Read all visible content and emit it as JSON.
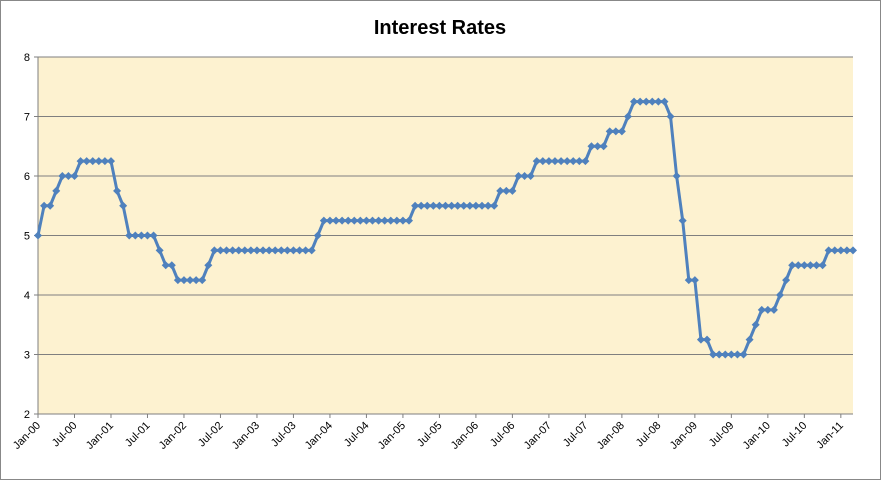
{
  "chart_data": {
    "type": "line",
    "title": "Interest Rates",
    "categories": [
      "Jan-00",
      null,
      null,
      null,
      null,
      null,
      "Jul-00",
      null,
      null,
      null,
      null,
      null,
      "Jan-01",
      null,
      null,
      null,
      null,
      null,
      "Jul-01",
      null,
      null,
      null,
      null,
      null,
      "Jan-02",
      null,
      null,
      null,
      null,
      null,
      "Jul-02",
      null,
      null,
      null,
      null,
      null,
      "Jan-03",
      null,
      null,
      null,
      null,
      null,
      "Jul-03",
      null,
      null,
      null,
      null,
      null,
      "Jan-04",
      null,
      null,
      null,
      null,
      null,
      "Jul-04",
      null,
      null,
      null,
      null,
      null,
      "Jan-05",
      null,
      null,
      null,
      null,
      null,
      "Jul-05",
      null,
      null,
      null,
      null,
      null,
      "Jan-06",
      null,
      null,
      null,
      null,
      null,
      "Jul-06",
      null,
      null,
      null,
      null,
      null,
      "Jan-07",
      null,
      null,
      null,
      null,
      null,
      "Jul-07",
      null,
      null,
      null,
      null,
      null,
      "Jan-08",
      null,
      null,
      null,
      null,
      null,
      "Jul-08",
      null,
      null,
      null,
      null,
      null,
      "Jan-09",
      null,
      null,
      null,
      null,
      null,
      "Jul-09",
      null,
      null,
      null,
      null,
      null,
      "Jan-10",
      null,
      null,
      null,
      null,
      null,
      "Jul-10",
      null,
      null,
      null,
      null,
      null,
      "Jan-11",
      null,
      null
    ],
    "values": [
      5,
      5.5,
      5.5,
      5.75,
      6,
      6,
      6,
      6.25,
      6.25,
      6.25,
      6.25,
      6.25,
      6.25,
      5.75,
      5.5,
      5,
      5,
      5,
      5,
      5,
      4.75,
      4.5,
      4.5,
      4.25,
      4.25,
      4.25,
      4.25,
      4.25,
      4.5,
      4.75,
      4.75,
      4.75,
      4.75,
      4.75,
      4.75,
      4.75,
      4.75,
      4.75,
      4.75,
      4.75,
      4.75,
      4.75,
      4.75,
      4.75,
      4.75,
      4.75,
      5,
      5.25,
      5.25,
      5.25,
      5.25,
      5.25,
      5.25,
      5.25,
      5.25,
      5.25,
      5.25,
      5.25,
      5.25,
      5.25,
      5.25,
      5.25,
      5.5,
      5.5,
      5.5,
      5.5,
      5.5,
      5.5,
      5.5,
      5.5,
      5.5,
      5.5,
      5.5,
      5.5,
      5.5,
      5.5,
      5.75,
      5.75,
      5.75,
      6,
      6,
      6,
      6.25,
      6.25,
      6.25,
      6.25,
      6.25,
      6.25,
      6.25,
      6.25,
      6.25,
      6.5,
      6.5,
      6.5,
      6.75,
      6.75,
      6.75,
      7,
      7.25,
      7.25,
      7.25,
      7.25,
      7.25,
      7.25,
      7,
      6,
      5.25,
      4.25,
      4.25,
      3.25,
      3.25,
      3,
      3,
      3,
      3,
      3,
      3,
      3.25,
      3.5,
      3.75,
      3.75,
      3.75,
      4,
      4.25,
      4.5,
      4.5,
      4.5,
      4.5,
      4.5,
      4.5,
      4.75,
      4.75,
      4.75,
      4.75,
      4.75
    ],
    "color": "#4f81bd",
    "ylim": [
      2,
      8
    ],
    "yticks": [
      2,
      3,
      4,
      5,
      6,
      7,
      8
    ],
    "grid": true,
    "plot_background": "#fdf2d0"
  }
}
